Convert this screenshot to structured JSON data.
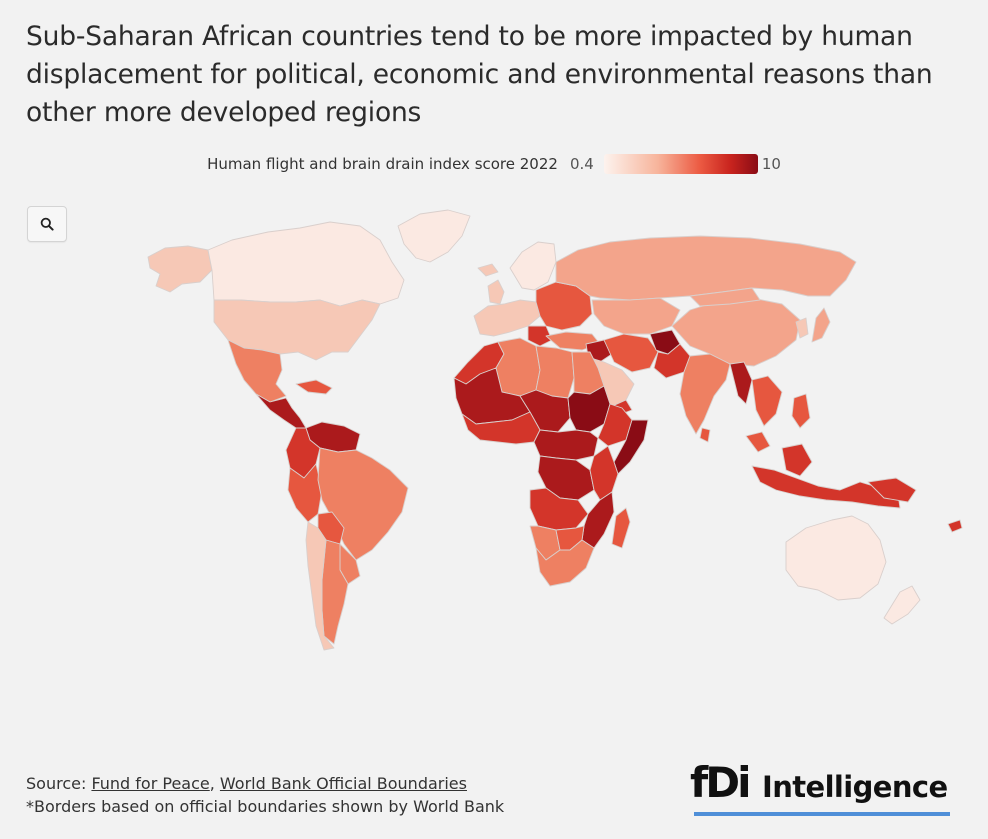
{
  "title": "Sub-Saharan African countries tend to be more impacted by human displacement for political, economic and environmental reasons than other more developed regions",
  "legend": {
    "title": "Human flight and brain drain index score 2022",
    "min": "0.4",
    "max": "10",
    "gradient_colors": [
      "#fdf3ee",
      "#f7b49b",
      "#ec5b43",
      "#c9241e",
      "#8a0c15"
    ]
  },
  "controls": {
    "zoom_icon": "search-icon"
  },
  "source": {
    "prefix": "Source: ",
    "link1": "Fund for Peace",
    "separator": ", ",
    "link2": "World Bank Official Boundaries",
    "note": "*Borders based on official boundaries shown by World Bank"
  },
  "logo": {
    "mark": "fDi",
    "word": "Intelligence"
  },
  "map_colors": {
    "very_low": "#fbe9e2",
    "low": "#f6c8b6",
    "medium_low": "#f3a48b",
    "medium": "#ee8062",
    "medium_high": "#e6573f",
    "high": "#d3352a",
    "very_high": "#ab1a1c",
    "extreme": "#8a0c15"
  }
}
